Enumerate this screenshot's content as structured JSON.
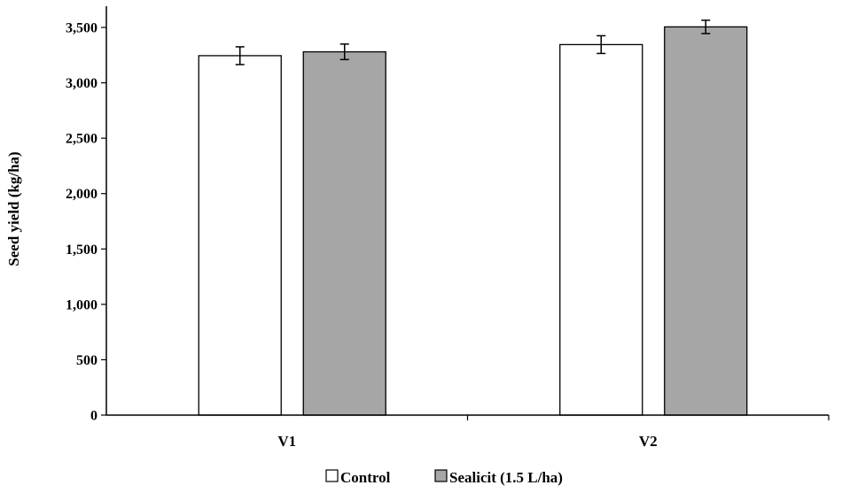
{
  "chart_data": {
    "type": "bar",
    "categories": [
      "V1",
      "V2"
    ],
    "series": [
      {
        "name": "Control",
        "values": [
          3245,
          3345
        ],
        "errors": [
          80,
          80
        ],
        "color": "#ffffff"
      },
      {
        "name": "Sealicit (1.5 L/ha)",
        "values": [
          3280,
          3505
        ],
        "errors": [
          70,
          60
        ],
        "color": "#a6a6a6"
      }
    ],
    "title": "",
    "xlabel": "",
    "ylabel": "Seed yield  (kg/ha)",
    "ylim": [
      0,
      3500
    ],
    "yticks": [
      0,
      500,
      1000,
      1500,
      2000,
      2500,
      3000,
      3500
    ],
    "ytick_labels": [
      "0",
      "500",
      "1,000",
      "1,500",
      "2,000",
      "2,500",
      "3,000",
      "3,500"
    ],
    "grid": false,
    "legend_position": "bottom-center",
    "bar_edge_color": "#000000"
  }
}
